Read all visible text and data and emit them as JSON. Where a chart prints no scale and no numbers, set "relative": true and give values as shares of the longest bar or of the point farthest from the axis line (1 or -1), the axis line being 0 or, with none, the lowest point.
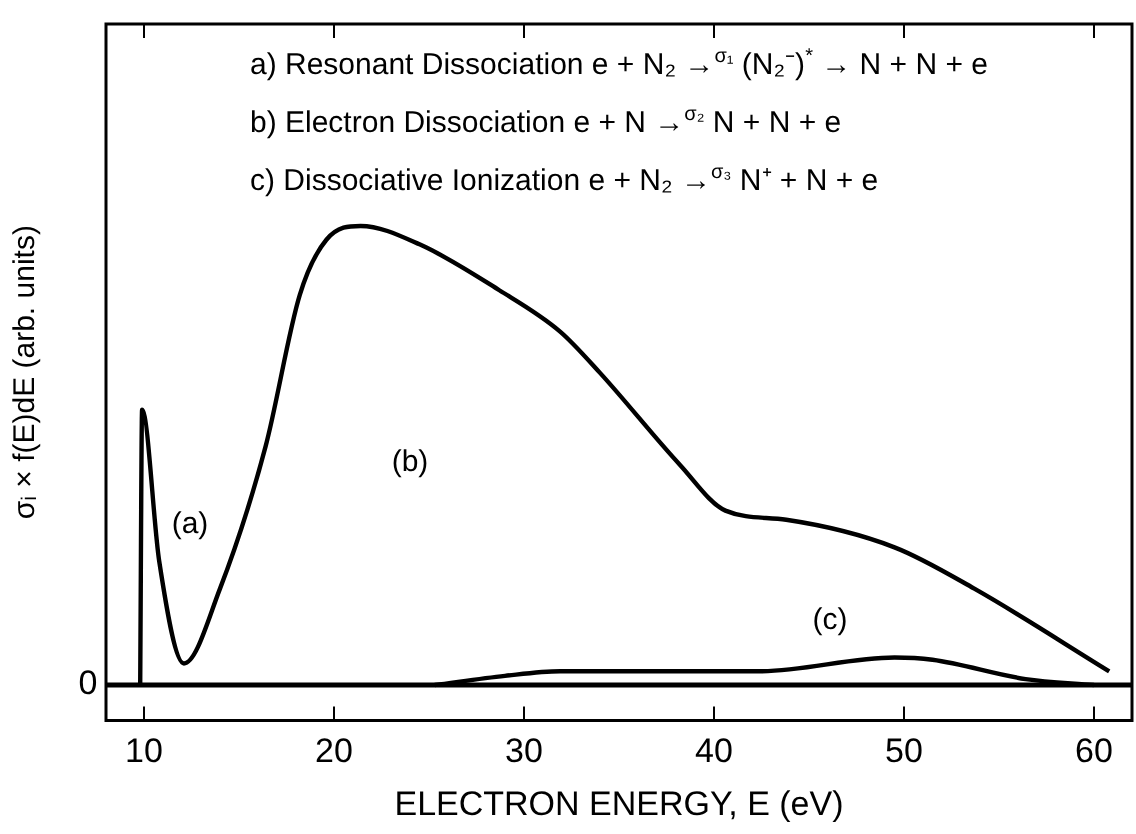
{
  "chart_data": {
    "type": "line",
    "relative": true,
    "xlabel": "ELECTRON ENERGY, E (eV)",
    "ylabel": "σᵢ × f(E)dE (arb. units)",
    "xlim": [
      8,
      62
    ],
    "xticks": [
      10,
      20,
      30,
      40,
      50,
      60
    ],
    "grid": false,
    "legend": false,
    "marker": "none",
    "line_style": "solid",
    "series": [
      {
        "color": "#000000",
        "x": [
          9.8,
          9.9,
          10.8,
          12.1,
          14.0,
          16.4,
          18.2,
          19.6,
          21.4,
          24.5,
          28.7,
          31.9,
          34.0,
          38.2,
          40.6,
          43.8,
          49.5,
          53.7,
          60.8
        ],
        "values": [
          0,
          0.6,
          0.27,
          0.047,
          0.21,
          0.52,
          0.85,
          0.97,
          1.0,
          0.96,
          0.86,
          0.77,
          0.68,
          0.48,
          0.38,
          0.36,
          0.3,
          0.21,
          0.03
        ]
      },
      {
        "color": "#000000",
        "x": [
          25.3,
          29.0,
          31.9,
          42.4,
          49.5,
          51.5,
          56.4,
          60.0
        ],
        "values": [
          0,
          0.02,
          0.03,
          0.03,
          0.06,
          0.055,
          0.013,
          0
        ]
      }
    ],
    "annotations": [
      "a) Resonant Dissociation e + N₂ →$^{σ₁}$ (N₂⁻)$^{*}$ → N + N + e",
      "b) Electron Dissociation e + N →$^{σ₂}$ N + N + e",
      "c) Dissociative Ionization e + N₂ →$^{σ₃}$ N⁺ + N + e",
      "(a)",
      "(b)",
      "(c)",
      "0"
    ]
  }
}
